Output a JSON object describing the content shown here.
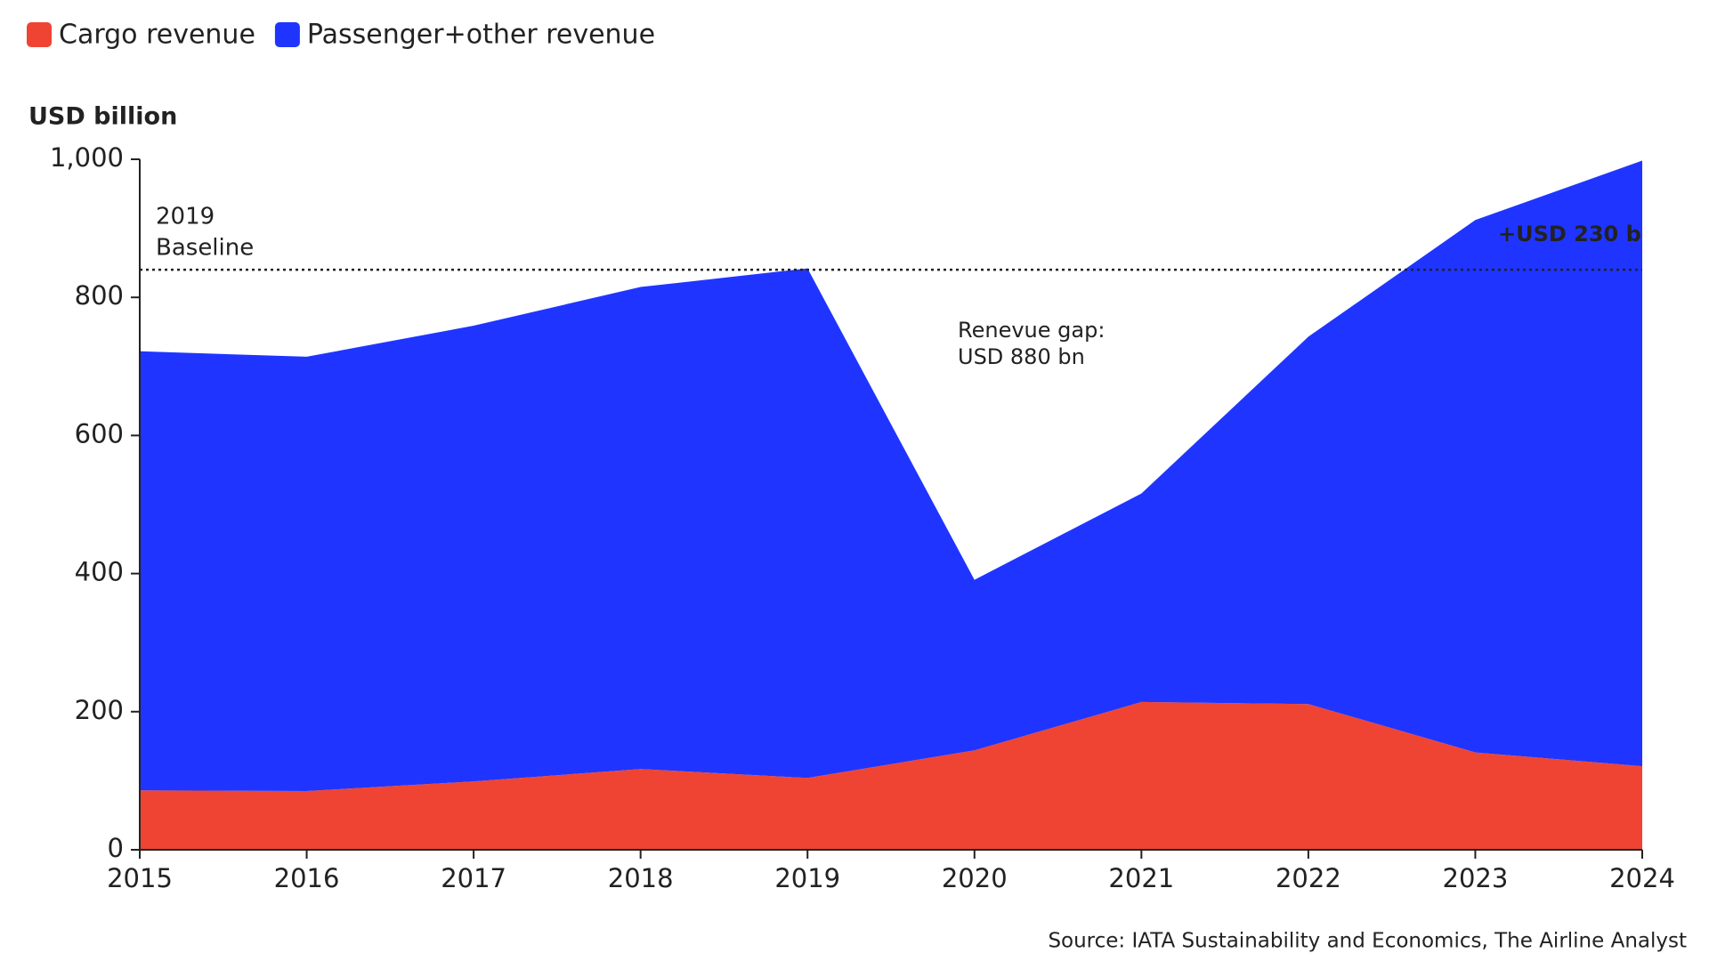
{
  "chart_data": {
    "type": "stacked-area",
    "y_axis_label": "USD billion",
    "categories": [
      "2015",
      "2016",
      "2017",
      "2018",
      "2019",
      "2020",
      "2021",
      "2022",
      "2023",
      "2024"
    ],
    "series": [
      {
        "name": "Cargo revenue",
        "color": "#ef4433",
        "values": [
          86,
          85,
          99,
          117,
          104,
          144,
          214,
          211,
          141,
          121
        ]
      },
      {
        "name": "Passenger+other revenue",
        "color": "#1f35ff",
        "values": [
          636,
          629,
          660,
          698,
          738,
          247,
          302,
          532,
          771,
          877
        ]
      }
    ],
    "ylim": [
      0,
      1000
    ],
    "yticks": [
      0,
      200,
      400,
      600,
      800,
      {
        "value": 1000,
        "label": "1,000"
      }
    ],
    "legend": "top-left",
    "baseline": {
      "value": 840,
      "label": [
        "2019",
        "Baseline"
      ]
    },
    "annotations": [
      {
        "lines": [
          "Renevue gap:",
          "USD 880 bn"
        ]
      },
      {
        "lines": [
          "+USD 230 b"
        ]
      }
    ],
    "source": "Source: IATA Sustainability and Economics, The Airline Analyst"
  }
}
